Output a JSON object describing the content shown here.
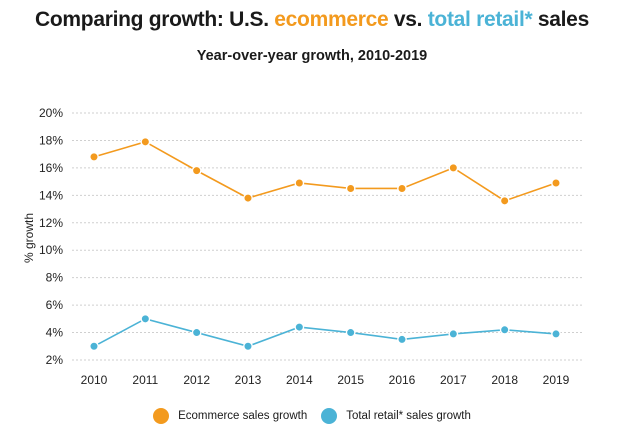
{
  "title": {
    "prefix": "Comparing growth: U.S. ",
    "ecom": "ecommerce",
    "mid": " vs. ",
    "retail": "total retail*",
    "suffix": " sales"
  },
  "colors": {
    "ecommerce": "#F39A1E",
    "retail": "#4BB3D6",
    "grid": "#cfcfcf",
    "text": "#1a1a1a"
  },
  "chart_data": {
    "type": "line",
    "title": "Comparing growth: U.S. ecommerce vs. total retail* sales",
    "subtitle": "Year-over-year growth, 2010-2019",
    "xlabel": "",
    "ylabel": "% growth",
    "x": [
      "2010",
      "2011",
      "2012",
      "2013",
      "2014",
      "2015",
      "2016",
      "2017",
      "2018",
      "2019"
    ],
    "y_ticks": [
      "2%",
      "4%",
      "6%",
      "8%",
      "10%",
      "12%",
      "14%",
      "16%",
      "18%",
      "20%"
    ],
    "ylim": [
      2,
      20
    ],
    "grid": "horizontal",
    "legend_position": "bottom",
    "series": [
      {
        "name": "Ecommerce sales growth",
        "color": "#F39A1E",
        "values": [
          16.8,
          17.9,
          15.8,
          13.8,
          14.9,
          14.5,
          14.5,
          16.0,
          13.6,
          14.9
        ]
      },
      {
        "name": "Total retail* sales growth",
        "color": "#4BB3D6",
        "values": [
          3.0,
          5.0,
          4.0,
          3.0,
          4.4,
          4.0,
          3.5,
          3.9,
          4.2,
          3.9
        ]
      }
    ]
  }
}
